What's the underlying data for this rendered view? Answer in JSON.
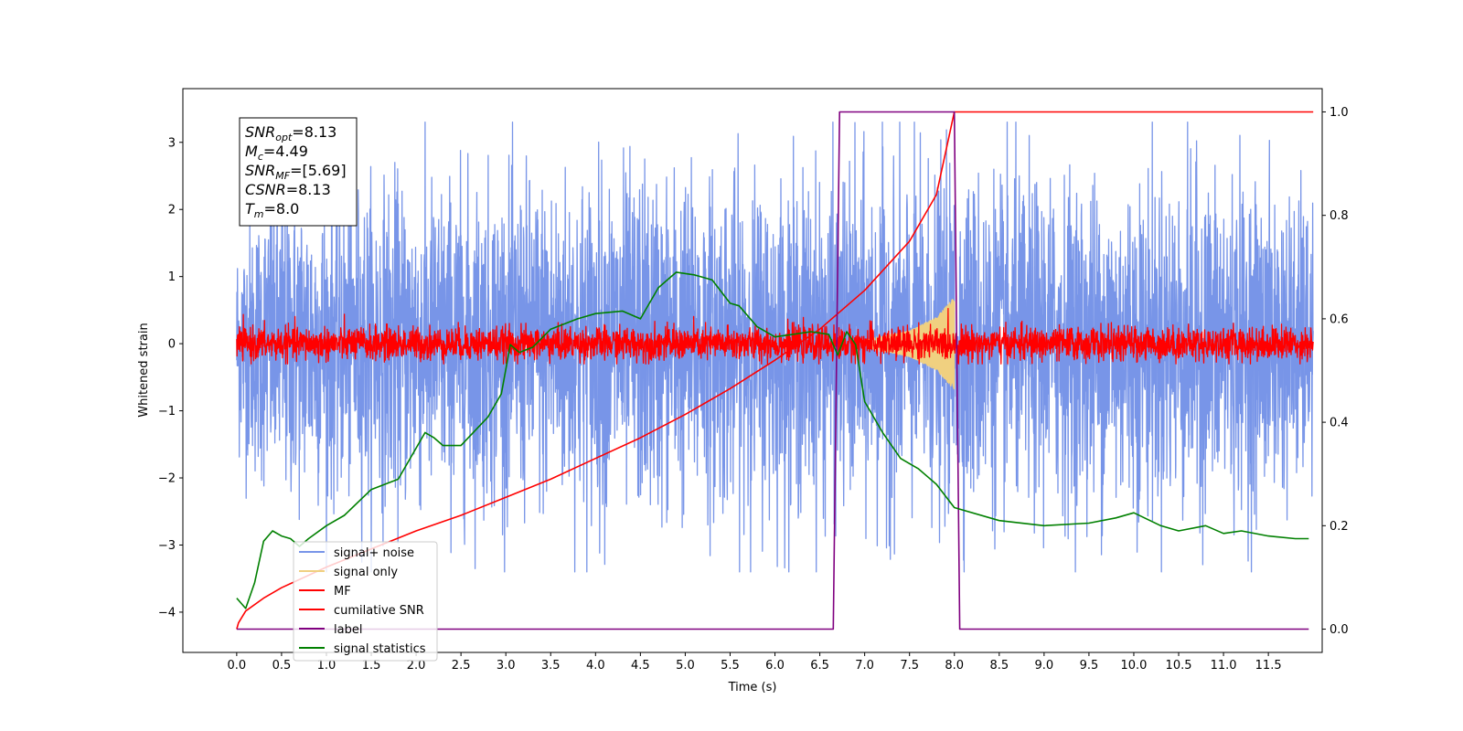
{
  "chart_data": {
    "type": "line",
    "xlabel": "Time (s)",
    "ylabel": "Whitened strain",
    "y2label": "",
    "xlim": [
      -0.6,
      12.1
    ],
    "ylim": [
      -4.6,
      3.8
    ],
    "y2lim": [
      -0.045,
      1.045
    ],
    "x_ticks": [
      0.0,
      0.5,
      1.0,
      1.5,
      2.0,
      2.5,
      3.0,
      3.5,
      4.0,
      4.5,
      5.0,
      5.5,
      6.0,
      6.5,
      7.0,
      7.5,
      8.0,
      8.5,
      9.0,
      9.5,
      10.0,
      10.5,
      11.0,
      11.5
    ],
    "x_tick_labels": [
      "0.0",
      "0.5",
      "1.0",
      "1.5",
      "2.0",
      "2.5",
      "3.0",
      "3.5",
      "4.0",
      "4.5",
      "5.0",
      "5.5",
      "6.0",
      "6.5",
      "7.0",
      "7.5",
      "8.0",
      "8.5",
      "9.0",
      "9.5",
      "10.0",
      "10.5",
      "11.0",
      "11.5"
    ],
    "y_ticks": [
      -4,
      -3,
      -2,
      -1,
      0,
      1,
      2,
      3
    ],
    "y_tick_labels": [
      "−4",
      "−3",
      "−2",
      "−1",
      "0",
      "1",
      "2",
      "3"
    ],
    "y2_ticks": [
      0.0,
      0.2,
      0.4,
      0.6,
      0.8,
      1.0
    ],
    "y2_tick_labels": [
      "0.0",
      "0.2",
      "0.4",
      "0.6",
      "0.8",
      "1.0"
    ],
    "grid": false,
    "legend_position": "bottom-left",
    "info_box": {
      "snr_opt": {
        "base": "SNR",
        "sub": "opt",
        "value": "=8.13"
      },
      "mc": {
        "base": "M",
        "sub": "c",
        "value": "=4.49"
      },
      "snr_mf": {
        "base": "SNR",
        "sub": "MF",
        "value": "=[5.69]"
      },
      "csnr": {
        "base": "CSNR",
        "value": "=8.13"
      },
      "tm": {
        "base": "T",
        "sub": "m",
        "value": "=8.0"
      }
    },
    "series": [
      {
        "name": "signal+ noise",
        "axis": "left",
        "color": "#7895e8",
        "kind": "noise_band",
        "x_range": [
          0.0,
          12.0
        ],
        "envelope": [
          [
            0.0,
            1.9
          ],
          [
            0.5,
            2.8
          ],
          [
            1.0,
            2.6
          ],
          [
            2.0,
            2.8
          ],
          [
            3.0,
            2.8
          ],
          [
            4.0,
            3.0
          ],
          [
            5.0,
            2.9
          ],
          [
            6.0,
            2.8
          ],
          [
            7.0,
            2.9
          ],
          [
            8.0,
            2.9
          ],
          [
            9.0,
            2.8
          ],
          [
            10.0,
            2.9
          ],
          [
            11.0,
            2.9
          ],
          [
            12.0,
            2.4
          ]
        ],
        "max_value": 3.3,
        "min_value": -3.4
      },
      {
        "name": "signal only",
        "axis": "left",
        "color": "#f0d080",
        "kind": "chirp",
        "x_range": [
          7.0,
          8.0
        ],
        "amplitude": [
          [
            7.0,
            0.05
          ],
          [
            7.5,
            0.2
          ],
          [
            7.8,
            0.4
          ],
          [
            8.0,
            0.7
          ]
        ]
      },
      {
        "name": "MF",
        "axis": "left",
        "color": "#ff0000",
        "kind": "noise_band",
        "x_range": [
          0.0,
          12.0
        ],
        "envelope": [
          [
            0.0,
            0.35
          ],
          [
            12.0,
            0.35
          ]
        ],
        "max_value": 0.85,
        "min_value": -0.3
      },
      {
        "name": "cumilative SNR",
        "axis": "right",
        "color": "#ff0000",
        "kind": "curve",
        "x": [
          0.0,
          0.02,
          0.1,
          0.3,
          0.5,
          1.0,
          1.5,
          2.0,
          2.5,
          3.0,
          3.5,
          4.0,
          4.5,
          5.0,
          5.5,
          6.0,
          6.5,
          7.0,
          7.5,
          7.8,
          8.0,
          8.02,
          9.0,
          10.0,
          11.0,
          12.0
        ],
        "y": [
          0.0,
          0.012,
          0.035,
          0.06,
          0.08,
          0.12,
          0.155,
          0.19,
          0.22,
          0.255,
          0.29,
          0.33,
          0.37,
          0.415,
          0.465,
          0.52,
          0.58,
          0.655,
          0.75,
          0.84,
          1.0,
          1.0,
          1.0,
          1.0,
          1.0,
          1.0
        ]
      },
      {
        "name": "label",
        "axis": "right",
        "color": "#800080",
        "kind": "curve",
        "x": [
          0.0,
          6.65,
          6.72,
          8.0,
          8.06,
          11.95
        ],
        "y": [
          0.0,
          0.0,
          1.0,
          1.0,
          0.0,
          0.0
        ]
      },
      {
        "name": "signal statistics",
        "axis": "right",
        "color": "#008000",
        "kind": "curve",
        "x": [
          0.0,
          0.1,
          0.2,
          0.3,
          0.4,
          0.5,
          0.6,
          0.7,
          0.8,
          1.0,
          1.2,
          1.5,
          1.8,
          2.0,
          2.1,
          2.2,
          2.3,
          2.5,
          2.8,
          2.95,
          3.05,
          3.15,
          3.3,
          3.5,
          3.8,
          4.0,
          4.3,
          4.5,
          4.7,
          4.9,
          5.1,
          5.3,
          5.5,
          5.6,
          5.8,
          6.0,
          6.2,
          6.4,
          6.6,
          6.7,
          6.8,
          6.9,
          7.0,
          7.2,
          7.4,
          7.6,
          7.8,
          8.0,
          8.5,
          9.0,
          9.5,
          9.8,
          10.0,
          10.3,
          10.5,
          10.8,
          11.0,
          11.2,
          11.5,
          11.8,
          11.95
        ],
        "y": [
          0.06,
          0.04,
          0.09,
          0.17,
          0.19,
          0.18,
          0.175,
          0.16,
          0.175,
          0.2,
          0.22,
          0.27,
          0.29,
          0.35,
          0.38,
          0.37,
          0.355,
          0.355,
          0.41,
          0.455,
          0.55,
          0.535,
          0.545,
          0.58,
          0.6,
          0.61,
          0.615,
          0.6,
          0.66,
          0.69,
          0.685,
          0.675,
          0.63,
          0.625,
          0.585,
          0.565,
          0.57,
          0.575,
          0.57,
          0.53,
          0.575,
          0.55,
          0.44,
          0.38,
          0.33,
          0.31,
          0.28,
          0.235,
          0.21,
          0.2,
          0.205,
          0.215,
          0.225,
          0.2,
          0.19,
          0.2,
          0.185,
          0.19,
          0.18,
          0.175,
          0.175
        ]
      }
    ]
  }
}
